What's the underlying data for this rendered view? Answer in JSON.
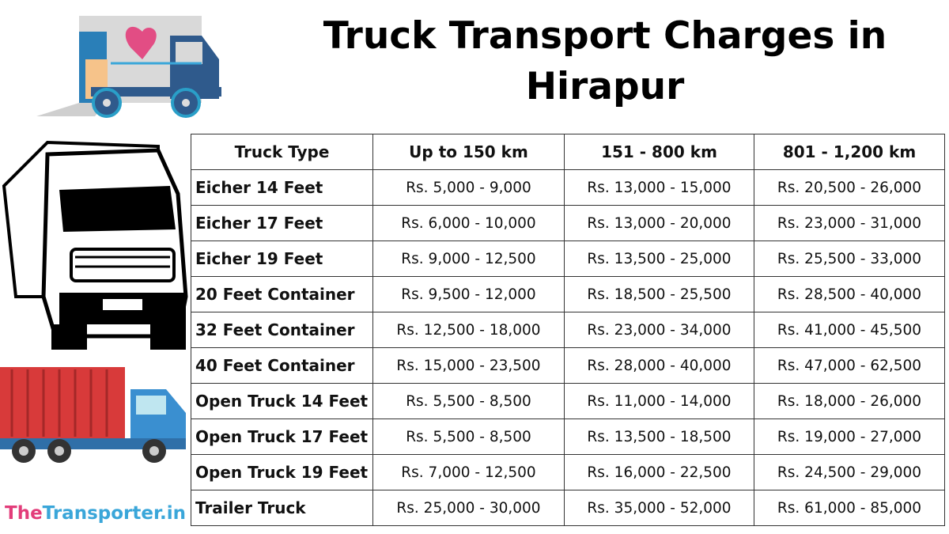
{
  "title": "Truck Transport Charges in Hirapur",
  "brand": {
    "part1": "The",
    "part2": "Transporter.in",
    "color1": "#e23d7a",
    "color2": "#3aa6d9"
  },
  "table": {
    "headers": [
      "Truck Type",
      "Up to 150 km",
      "151 - 800 km",
      "801 - 1,200 km"
    ],
    "rows": [
      [
        "Eicher 14 Feet",
        "Rs. 5,000 - 9,000",
        "Rs. 13,000 - 15,000",
        "Rs. 20,500 - 26,000"
      ],
      [
        "Eicher 17 Feet",
        "Rs. 6,000 - 10,000",
        "Rs. 13,000 - 20,000",
        "Rs. 23,000 - 31,000"
      ],
      [
        "Eicher 19 Feet",
        "Rs. 9,000 - 12,500",
        "Rs. 13,500 - 25,000",
        "Rs. 25,500 - 33,000"
      ],
      [
        "20 Feet Container",
        "Rs. 9,500 - 12,000",
        "Rs. 18,500 - 25,500",
        "Rs. 28,500 - 40,000"
      ],
      [
        "32 Feet Container",
        "Rs. 12,500 - 18,000",
        "Rs. 23,000 - 34,000",
        "Rs. 41,000 - 45,500"
      ],
      [
        "40 Feet Container",
        "Rs. 15,000 - 23,500",
        "Rs. 28,000 - 40,000",
        "Rs. 47,000 - 62,500"
      ],
      [
        "Open Truck 14 Feet",
        "Rs. 5,500 - 8,500",
        "Rs. 11,000 - 14,000",
        "Rs. 18,000 - 26,000"
      ],
      [
        "Open Truck 17 Feet",
        "Rs. 5,500 - 8,500",
        "Rs. 13,500 - 18,500",
        "Rs. 19,000 - 27,000"
      ],
      [
        "Open Truck 19 Feet",
        "Rs. 7,000 - 12,500",
        "Rs. 16,000 - 22,500",
        "Rs. 24,500 - 29,000"
      ],
      [
        "Trailer Truck",
        "Rs. 25,000 - 30,000",
        "Rs. 35,000 - 52,000",
        "Rs. 61,000 - 85,000"
      ]
    ]
  },
  "illustrations": {
    "top": "moving-van-icon",
    "middle": "truck-front-icon",
    "bottom": "container-truck-icon"
  }
}
